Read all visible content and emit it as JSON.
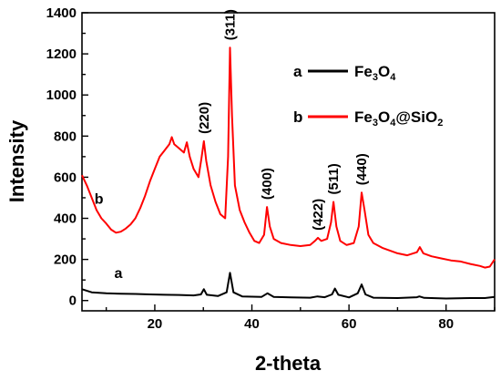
{
  "chart_data": {
    "type": "line",
    "title": "",
    "xlabel": "2-theta",
    "ylabel": "Intensity",
    "xlim": [
      5,
      90
    ],
    "ylim": [
      -50,
      1400
    ],
    "xticks": [
      20,
      40,
      60,
      80
    ],
    "yticks": [
      0,
      200,
      400,
      600,
      800,
      1000,
      1200,
      1400
    ],
    "grid": false,
    "legend_position": "top-right",
    "series": [
      {
        "name": "Fe3O4",
        "legend_letter": "a",
        "legend_base": "Fe",
        "legend_sub1": "3",
        "legend_mid": "O",
        "legend_sub2": "4",
        "legend_tail": "",
        "color": "#000000",
        "points": [
          [
            5,
            55
          ],
          [
            7,
            40
          ],
          [
            10,
            35
          ],
          [
            13,
            33
          ],
          [
            16,
            32
          ],
          [
            19,
            30
          ],
          [
            22,
            28
          ],
          [
            25,
            27
          ],
          [
            28,
            25
          ],
          [
            29.5,
            30
          ],
          [
            30.1,
            55
          ],
          [
            30.7,
            28
          ],
          [
            33,
            22
          ],
          [
            34.8,
            40
          ],
          [
            35.5,
            135
          ],
          [
            36.2,
            40
          ],
          [
            38,
            20
          ],
          [
            42,
            18
          ],
          [
            43.2,
            35
          ],
          [
            44.5,
            18
          ],
          [
            48,
            15
          ],
          [
            52,
            14
          ],
          [
            53.5,
            20
          ],
          [
            55,
            16
          ],
          [
            56.5,
            30
          ],
          [
            57.1,
            58
          ],
          [
            57.8,
            28
          ],
          [
            60,
            15
          ],
          [
            61.8,
            35
          ],
          [
            62.6,
            78
          ],
          [
            63.4,
            30
          ],
          [
            65,
            14
          ],
          [
            70,
            12
          ],
          [
            74,
            16
          ],
          [
            74.5,
            20
          ],
          [
            75.5,
            13
          ],
          [
            80,
            10
          ],
          [
            85,
            12
          ],
          [
            88,
            12
          ],
          [
            90,
            18
          ]
        ]
      },
      {
        "name": "Fe3O4@SiO2",
        "legend_letter": "b",
        "legend_base": "Fe",
        "legend_sub1": "3",
        "legend_mid": "O",
        "legend_sub2": "4",
        "legend_tail": "@SiO",
        "legend_sub3": "2",
        "color": "#ff0000",
        "points": [
          [
            5,
            610
          ],
          [
            6,
            560
          ],
          [
            7,
            500
          ],
          [
            8,
            440
          ],
          [
            9,
            400
          ],
          [
            10,
            375
          ],
          [
            11,
            345
          ],
          [
            12,
            330
          ],
          [
            13,
            335
          ],
          [
            14,
            350
          ],
          [
            15,
            370
          ],
          [
            16,
            400
          ],
          [
            17,
            450
          ],
          [
            18,
            510
          ],
          [
            19,
            580
          ],
          [
            20,
            640
          ],
          [
            21,
            700
          ],
          [
            22,
            730
          ],
          [
            23,
            760
          ],
          [
            23.5,
            795
          ],
          [
            24,
            760
          ],
          [
            25,
            740
          ],
          [
            26,
            720
          ],
          [
            26.6,
            770
          ],
          [
            27.2,
            700
          ],
          [
            28,
            640
          ],
          [
            29,
            600
          ],
          [
            29.6,
            690
          ],
          [
            30.1,
            775
          ],
          [
            30.6,
            680
          ],
          [
            31.5,
            560
          ],
          [
            32.5,
            480
          ],
          [
            33.5,
            420
          ],
          [
            34.5,
            400
          ],
          [
            35.1,
            700
          ],
          [
            35.5,
            1230
          ],
          [
            35.9,
            900
          ],
          [
            36.5,
            560
          ],
          [
            37.5,
            440
          ],
          [
            38.5,
            380
          ],
          [
            39.5,
            330
          ],
          [
            40.5,
            290
          ],
          [
            41.5,
            280
          ],
          [
            42.5,
            320
          ],
          [
            43.1,
            455
          ],
          [
            43.7,
            360
          ],
          [
            44.5,
            300
          ],
          [
            46,
            280
          ],
          [
            48,
            270
          ],
          [
            50,
            265
          ],
          [
            52,
            270
          ],
          [
            53,
            290
          ],
          [
            53.6,
            305
          ],
          [
            54.3,
            290
          ],
          [
            55.5,
            300
          ],
          [
            56.3,
            380
          ],
          [
            56.8,
            480
          ],
          [
            57.4,
            360
          ],
          [
            58.2,
            290
          ],
          [
            59.5,
            270
          ],
          [
            61,
            280
          ],
          [
            62,
            360
          ],
          [
            62.6,
            525
          ],
          [
            63.2,
            440
          ],
          [
            64,
            320
          ],
          [
            65,
            280
          ],
          [
            67,
            255
          ],
          [
            70,
            230
          ],
          [
            72,
            220
          ],
          [
            74,
            235
          ],
          [
            74.6,
            260
          ],
          [
            75.3,
            230
          ],
          [
            77,
            215
          ],
          [
            79,
            205
          ],
          [
            81,
            195
          ],
          [
            83,
            190
          ],
          [
            85,
            178
          ],
          [
            87,
            168
          ],
          [
            88,
            160
          ],
          [
            89,
            165
          ],
          [
            90,
            200
          ]
        ]
      }
    ],
    "peak_labels": [
      {
        "text": "(220)",
        "x": 30.1,
        "y": 775
      },
      {
        "text": "(311)",
        "x": 35.5,
        "y": 1230
      },
      {
        "text": "(400)",
        "x": 43.1,
        "y": 455
      },
      {
        "text": "(422)",
        "x": 53.6,
        "y": 305
      },
      {
        "text": "(511)",
        "x": 56.8,
        "y": 480
      },
      {
        "text": "(440)",
        "x": 62.6,
        "y": 525
      }
    ],
    "curve_labels": [
      {
        "text": "a",
        "x": 12.5,
        "y": 110
      },
      {
        "text": "b",
        "x": 8.5,
        "y": 470
      }
    ]
  }
}
